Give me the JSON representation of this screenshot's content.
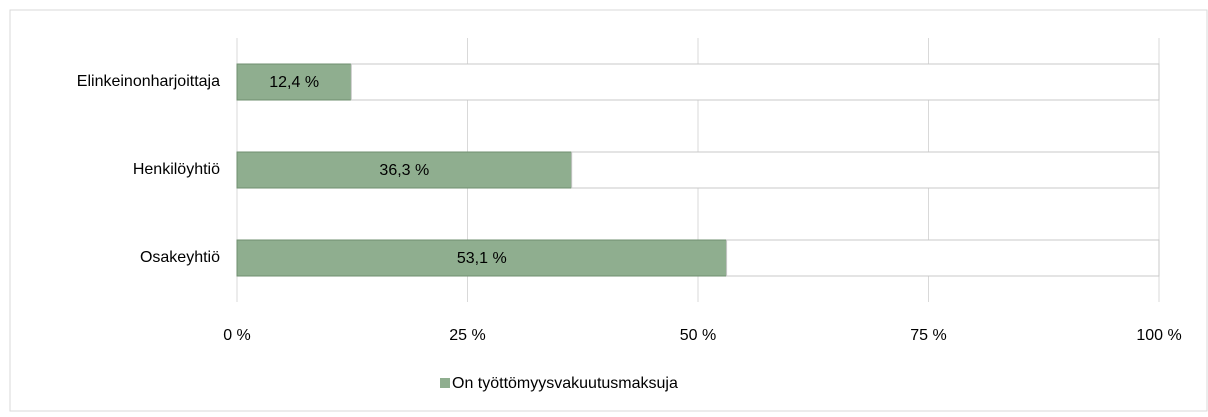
{
  "chart_data": {
    "type": "bar",
    "orientation": "horizontal",
    "stacked": true,
    "categories": [
      "Elinkeinonharjoittaja",
      "Henkilöyhtiö",
      "Osakeyhtiö"
    ],
    "series": [
      {
        "name": "On työttömyysvakuutusmaksuja",
        "color": "#8fae8f",
        "values": [
          12.4,
          36.3,
          53.1
        ],
        "value_labels": [
          "12,4 %",
          "36,3 %",
          "53,1 %"
        ]
      },
      {
        "color": "#ffffff",
        "values": [
          87.6,
          63.7,
          46.9
        ]
      }
    ],
    "xlim": [
      0,
      100
    ],
    "xticks": [
      {
        "value": 0,
        "label": "0 %"
      },
      {
        "value": 25,
        "label": "25 %"
      },
      {
        "value": 50,
        "label": "50 %"
      },
      {
        "value": 75,
        "label": "75 %"
      },
      {
        "value": 100,
        "label": "100 %"
      }
    ],
    "grid": true,
    "legend": "bottom"
  }
}
